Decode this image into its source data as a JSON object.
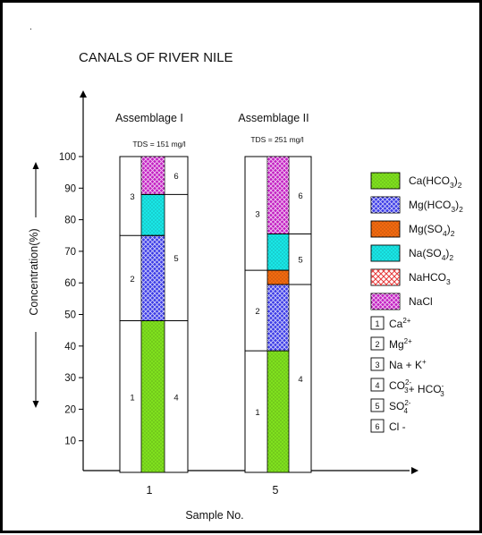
{
  "chart_data": {
    "type": "bar",
    "subtype": "stacked-ion-composition",
    "title": "CANALS OF RIVER NILE",
    "xlabel": "Sample No.",
    "ylabel": "Concentration(%)",
    "ylim": [
      0,
      100
    ],
    "yticks": [
      "10",
      "20",
      "30",
      "40",
      "50",
      "60",
      "70",
      "80",
      "90",
      "100"
    ],
    "grid": false,
    "legend_position": "right",
    "groups": [
      {
        "name": "Assemblage I",
        "tds": "TDS = 151 mg/l",
        "sample": "1",
        "cations": [
          {
            "label": "1",
            "from": 0,
            "to": 48
          },
          {
            "label": "2",
            "from": 48,
            "to": 75
          },
          {
            "label": "3",
            "from": 75,
            "to": 100
          }
        ],
        "anions": [
          {
            "label": "4",
            "from": 0,
            "to": 48
          },
          {
            "label": "5",
            "from": 48,
            "to": 88
          },
          {
            "label": "6",
            "from": 88,
            "to": 100
          }
        ],
        "salts": [
          {
            "salt": "Ca(HCO3)2",
            "from": 0,
            "to": 48
          },
          {
            "salt": "Mg(HCO3)2",
            "from": 48,
            "to": 75
          },
          {
            "salt": "Na(SO4)2",
            "from": 75,
            "to": 88
          },
          {
            "salt": "NaCl",
            "from": 88,
            "to": 100
          }
        ]
      },
      {
        "name": "Assemblage II",
        "tds": "TDS = 251 mg/l",
        "sample": "5",
        "cations": [
          {
            "label": "1",
            "from": 0,
            "to": 38.5
          },
          {
            "label": "2",
            "from": 38.5,
            "to": 64
          },
          {
            "label": "3",
            "from": 64,
            "to": 100
          }
        ],
        "anions": [
          {
            "label": "4",
            "from": 0,
            "to": 59.5
          },
          {
            "label": "5",
            "from": 59.5,
            "to": 75.5
          },
          {
            "label": "6",
            "from": 75.5,
            "to": 100
          }
        ],
        "salts": [
          {
            "salt": "Ca(HCO3)2",
            "from": 0,
            "to": 38.5
          },
          {
            "salt": "Mg(HCO3)2",
            "from": 38.5,
            "to": 59.5
          },
          {
            "salt": "Mg(SO4)2",
            "from": 59.5,
            "to": 64
          },
          {
            "salt": "Na(SO4)2",
            "from": 64,
            "to": 75.5
          },
          {
            "salt": "NaCl",
            "from": 75.5,
            "to": 100
          }
        ]
      }
    ],
    "salt_legend": [
      {
        "key": "Ca(HCO3)2",
        "main": "Ca(HCO",
        "sub": "3",
        "close": ")",
        "sub2": "2",
        "color": "#7fe01e",
        "pattern": "dots"
      },
      {
        "key": "Mg(HCO3)2",
        "main": "Mg(HCO",
        "sub": "3",
        "close": ")",
        "sub2": "2",
        "color": "#3a3ae6",
        "pattern": "cross"
      },
      {
        "key": "Mg(SO4)2",
        "main": "Mg(SO",
        "sub": "4",
        "close": ")",
        "sub2": "2",
        "color": "#f26a10",
        "pattern": "dots"
      },
      {
        "key": "Na(SO4)2",
        "main": "Na(SO",
        "sub": "4",
        "close": ")",
        "sub2": "2",
        "color": "#19e6e6",
        "pattern": "dots"
      },
      {
        "key": "NaHCO3",
        "main": "NaHCO",
        "sub": "3",
        "close": "",
        "sub2": "",
        "color": "#e63a3a",
        "pattern": "cross-open"
      },
      {
        "key": "NaCl",
        "main": "NaCl",
        "sub": "",
        "close": "",
        "sub2": "",
        "color": "#c21ec2",
        "pattern": "cross"
      }
    ],
    "ion_legend": [
      {
        "num": "1",
        "text": "Ca",
        "sup": "2+"
      },
      {
        "num": "2",
        "text": "Mg",
        "sup": "2+"
      },
      {
        "num": "3",
        "text": "Na + K",
        "sup": "+"
      },
      {
        "num": "4",
        "text": "CO",
        "sup": "2-",
        "sub": "3",
        "tail": "+ HCO",
        "sup2": "-",
        "sub2": "3"
      },
      {
        "num": "5",
        "text": "SO",
        "sup": "2-",
        "sub": "4"
      },
      {
        "num": "6",
        "text": "Cl -"
      }
    ]
  }
}
